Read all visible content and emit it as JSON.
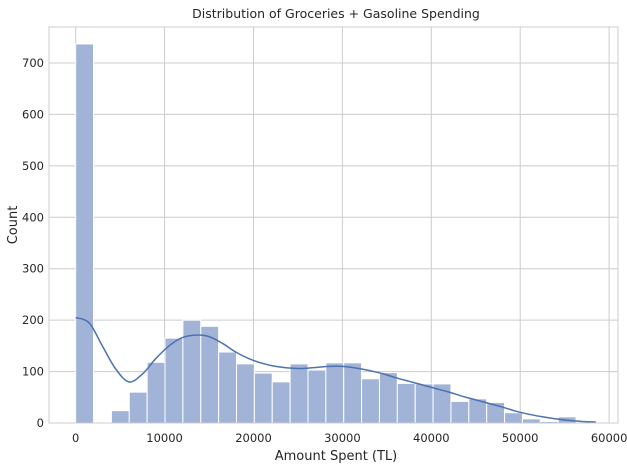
{
  "chart_data": {
    "type": "bar",
    "title": "Distribution of Groceries + Gasoline Spending",
    "xlabel": "Amount Spent (TL)",
    "ylabel": "Count",
    "xlim": [
      -3000,
      61000
    ],
    "ylim": [
      0,
      770
    ],
    "x_ticks": [
      0,
      10000,
      20000,
      30000,
      40000,
      50000,
      60000
    ],
    "y_ticks": [
      0,
      100,
      200,
      300,
      400,
      500,
      600,
      700
    ],
    "grid": true,
    "bin_width": 2010,
    "bins": [
      {
        "x0": 0,
        "count": 737
      },
      {
        "x0": 2010,
        "count": 0
      },
      {
        "x0": 4020,
        "count": 24
      },
      {
        "x0": 6030,
        "count": 60
      },
      {
        "x0": 8040,
        "count": 118
      },
      {
        "x0": 10050,
        "count": 165
      },
      {
        "x0": 12060,
        "count": 200
      },
      {
        "x0": 14070,
        "count": 188
      },
      {
        "x0": 16080,
        "count": 138
      },
      {
        "x0": 18090,
        "count": 115
      },
      {
        "x0": 20100,
        "count": 97
      },
      {
        "x0": 22110,
        "count": 80
      },
      {
        "x0": 24120,
        "count": 115
      },
      {
        "x0": 26130,
        "count": 103
      },
      {
        "x0": 28140,
        "count": 117
      },
      {
        "x0": 30150,
        "count": 117
      },
      {
        "x0": 32160,
        "count": 86
      },
      {
        "x0": 34170,
        "count": 98
      },
      {
        "x0": 36180,
        "count": 77
      },
      {
        "x0": 38190,
        "count": 76
      },
      {
        "x0": 40200,
        "count": 76
      },
      {
        "x0": 42210,
        "count": 42
      },
      {
        "x0": 44220,
        "count": 47
      },
      {
        "x0": 46230,
        "count": 40
      },
      {
        "x0": 48240,
        "count": 20
      },
      {
        "x0": 50250,
        "count": 8
      },
      {
        "x0": 52260,
        "count": 3
      },
      {
        "x0": 54270,
        "count": 12
      }
    ],
    "kde": {
      "x": [
        0,
        1500,
        3000,
        4500,
        6000,
        7500,
        9000,
        10500,
        12000,
        13500,
        15000,
        16500,
        18000,
        19500,
        21000,
        22500,
        24000,
        25500,
        27000,
        28500,
        30000,
        31500,
        33000,
        34500,
        36000,
        37500,
        39000,
        40500,
        42000,
        43500,
        45000,
        46500,
        48000,
        49500,
        51000,
        52500,
        54000,
        55500,
        57000,
        58500
      ],
      "y": [
        205,
        195,
        150,
        105,
        80,
        95,
        125,
        150,
        166,
        171,
        168,
        155,
        138,
        125,
        116,
        110,
        107,
        106,
        108,
        110,
        110,
        107,
        102,
        96,
        88,
        81,
        74,
        67,
        60,
        52,
        45,
        38,
        31,
        23,
        17,
        12,
        8,
        5,
        3,
        2
      ]
    },
    "bar_color": "#a1b3d6",
    "bar_edge_color": "#ffffff",
    "kde_color": "#4c72b0",
    "grid_color": "#cccccc"
  }
}
